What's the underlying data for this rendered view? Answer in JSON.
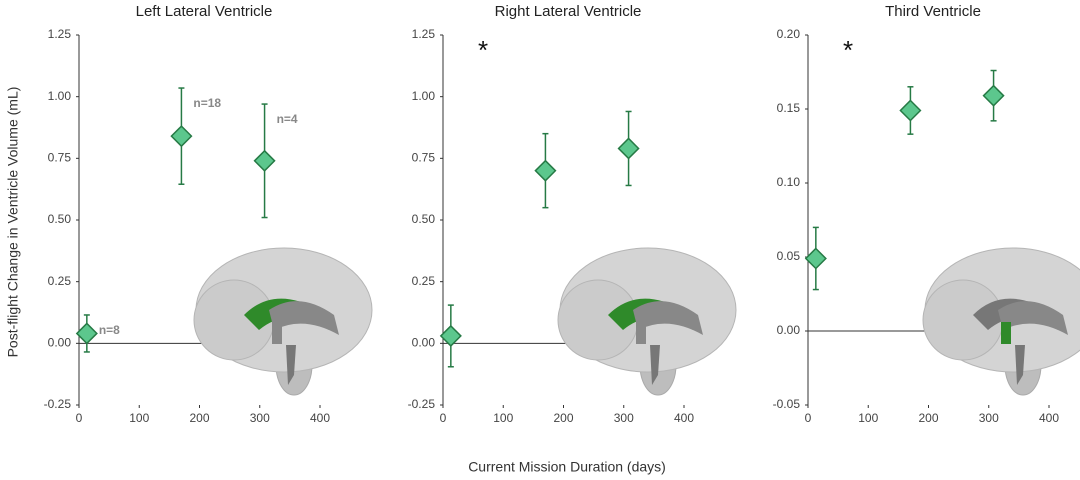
{
  "xlabel": "Current Mission Duration (days)",
  "ylabel": "Post-flight Change in Ventricle Volume (mL)",
  "chart_data": [
    {
      "type": "scatter",
      "title": "Left Lateral Ventricle",
      "x": [
        13,
        170,
        308
      ],
      "values": [
        0.04,
        0.84,
        0.74
      ],
      "errors": [
        0.075,
        0.195,
        0.23
      ],
      "point_labels": [
        "n=8",
        "n=18",
        "n=4"
      ],
      "color": "#5cc78d",
      "edge_color": "#267a45",
      "xlim": [
        0,
        420
      ],
      "xticks": [
        0,
        100,
        200,
        300,
        400
      ],
      "ylim": [
        -0.25,
        1.25
      ],
      "yticks": [
        -0.25,
        {
          "value": 0,
          "label": "0.00"
        },
        0.25,
        {
          "value": 0.5,
          "label": "0.50"
        },
        0.75,
        {
          "value": 1,
          "label": "1.00"
        },
        1.25
      ]
    },
    {
      "type": "scatter",
      "title": "Right Lateral Ventricle",
      "x": [
        13,
        170,
        308
      ],
      "values": [
        0.03,
        0.7,
        0.79
      ],
      "errors": [
        0.125,
        0.15,
        0.15
      ],
      "annotation": "*",
      "color": "#5cc78d",
      "edge_color": "#267a45",
      "xlim": [
        0,
        420
      ],
      "xticks": [
        0,
        100,
        200,
        300,
        400
      ],
      "ylim": [
        -0.25,
        1.25
      ],
      "yticks": [
        -0.25,
        {
          "value": 0,
          "label": "0.00"
        },
        0.25,
        {
          "value": 0.5,
          "label": "0.50"
        },
        0.75,
        {
          "value": 1,
          "label": "1.00"
        },
        1.25
      ]
    },
    {
      "type": "scatter",
      "title": "Third Ventricle",
      "x": [
        13,
        170,
        308
      ],
      "values": [
        0.049,
        0.149,
        0.159
      ],
      "errors": [
        0.021,
        0.016,
        0.017
      ],
      "annotation": "*",
      "color": "#5cc78d",
      "edge_color": "#267a45",
      "xlim": [
        0,
        420
      ],
      "xticks": [
        0,
        100,
        200,
        300,
        400
      ],
      "ylim": [
        -0.05,
        0.2
      ],
      "yticks": [
        -0.05,
        {
          "value": 0,
          "label": "0.00"
        },
        0.05,
        {
          "value": 0.1,
          "label": "0.10"
        },
        0.15,
        {
          "value": 0.2,
          "label": "0.20"
        }
      ]
    }
  ]
}
